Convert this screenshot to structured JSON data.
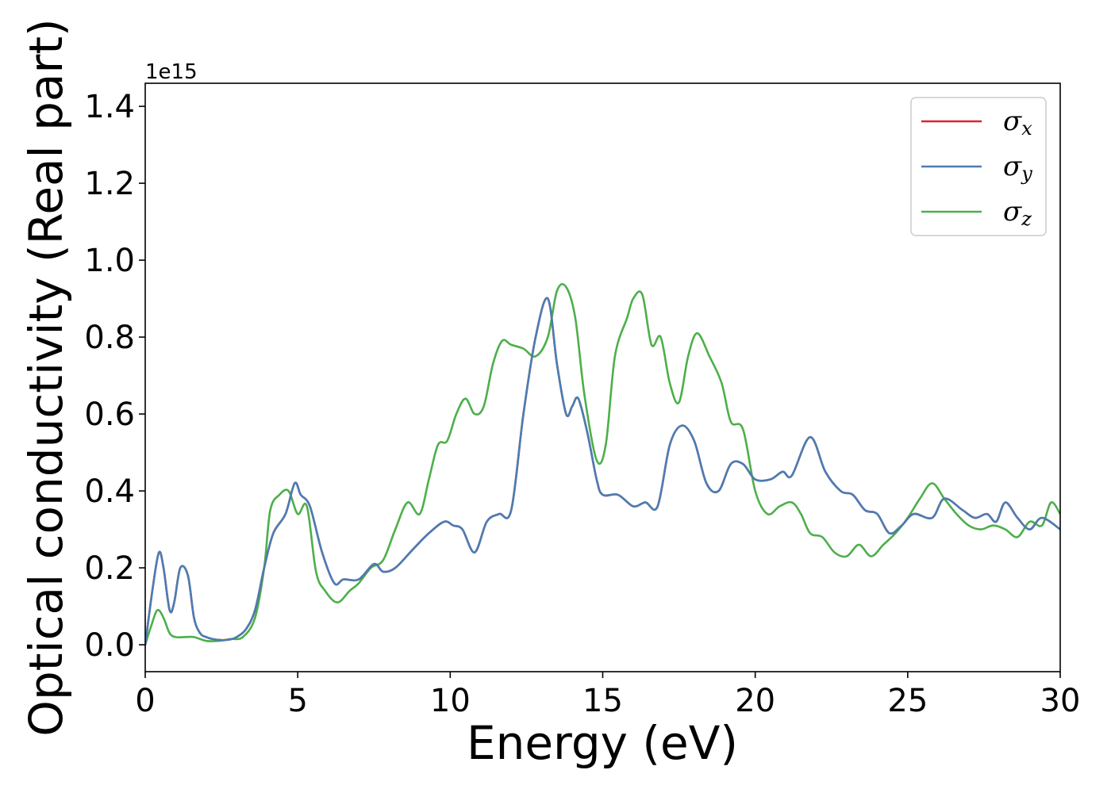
{
  "chart_data": {
    "type": "line",
    "title": "",
    "xlabel": "Energy (eV)",
    "ylabel": "Optical conductivity (Real part)",
    "y_offset_label": "1e15",
    "y_scale_factor": 1000000000000000.0,
    "xlim": [
      0,
      30
    ],
    "ylim": [
      -0.07,
      1.46
    ],
    "xticks": [
      0,
      5,
      10,
      15,
      20,
      25,
      30
    ],
    "yticks": [
      0.0,
      0.2,
      0.4,
      0.6,
      0.8,
      1.0,
      1.2,
      1.4
    ],
    "grid": false,
    "legend_position": "top-right",
    "series": [
      {
        "name": "σ",
        "subscript": "x",
        "color": "#d62728",
        "x": [
          0,
          0.25,
          0.45,
          0.6,
          0.8,
          0.95,
          1.15,
          1.4,
          1.6,
          1.8,
          2.0,
          2.2,
          2.5,
          2.8,
          3.0,
          3.3,
          3.6,
          3.9,
          4.2,
          4.6,
          4.9,
          5.1,
          5.4,
          5.8,
          6.2,
          6.5,
          7.0,
          7.5,
          7.8,
          8.2,
          8.8,
          9.3,
          9.8,
          10.1,
          10.4,
          10.8,
          11.2,
          11.6,
          12.0,
          12.4,
          12.8,
          13.2,
          13.5,
          13.8,
          14.0,
          14.2,
          14.5,
          14.8,
          15.0,
          15.5,
          16.0,
          16.4,
          16.8,
          17.2,
          17.6,
          18.0,
          18.4,
          18.8,
          19.2,
          19.6,
          20.0,
          20.5,
          20.9,
          21.2,
          21.8,
          22.3,
          22.8,
          23.2,
          23.6,
          24.0,
          24.4,
          24.8,
          25.2,
          25.8,
          26.2,
          26.8,
          27.2,
          27.6,
          27.9,
          28.2,
          28.6,
          29.0,
          29.4,
          30.0
        ],
        "values": [
          0.0,
          0.15,
          0.24,
          0.2,
          0.09,
          0.11,
          0.2,
          0.18,
          0.07,
          0.03,
          0.02,
          0.015,
          0.012,
          0.014,
          0.02,
          0.04,
          0.09,
          0.2,
          0.29,
          0.34,
          0.42,
          0.39,
          0.36,
          0.24,
          0.16,
          0.17,
          0.17,
          0.21,
          0.19,
          0.2,
          0.25,
          0.29,
          0.32,
          0.31,
          0.3,
          0.24,
          0.32,
          0.34,
          0.35,
          0.6,
          0.8,
          0.9,
          0.73,
          0.6,
          0.62,
          0.64,
          0.55,
          0.43,
          0.39,
          0.39,
          0.36,
          0.37,
          0.36,
          0.52,
          0.57,
          0.53,
          0.42,
          0.4,
          0.47,
          0.47,
          0.43,
          0.43,
          0.45,
          0.44,
          0.54,
          0.45,
          0.4,
          0.39,
          0.35,
          0.34,
          0.29,
          0.31,
          0.34,
          0.33,
          0.38,
          0.35,
          0.33,
          0.34,
          0.32,
          0.37,
          0.33,
          0.3,
          0.33,
          0.3
        ]
      },
      {
        "name": "σ",
        "subscript": "y",
        "color": "#4a7db3",
        "x": [
          0,
          0.25,
          0.45,
          0.6,
          0.8,
          0.95,
          1.15,
          1.4,
          1.6,
          1.8,
          2.0,
          2.2,
          2.5,
          2.8,
          3.0,
          3.3,
          3.6,
          3.9,
          4.2,
          4.6,
          4.9,
          5.1,
          5.4,
          5.8,
          6.2,
          6.5,
          7.0,
          7.5,
          7.8,
          8.2,
          8.8,
          9.3,
          9.8,
          10.1,
          10.4,
          10.8,
          11.2,
          11.6,
          12.0,
          12.4,
          12.8,
          13.2,
          13.5,
          13.8,
          14.0,
          14.2,
          14.5,
          14.8,
          15.0,
          15.5,
          16.0,
          16.4,
          16.8,
          17.2,
          17.6,
          18.0,
          18.4,
          18.8,
          19.2,
          19.6,
          20.0,
          20.5,
          20.9,
          21.2,
          21.8,
          22.3,
          22.8,
          23.2,
          23.6,
          24.0,
          24.4,
          24.8,
          25.2,
          25.8,
          26.2,
          26.8,
          27.2,
          27.6,
          27.9,
          28.2,
          28.6,
          29.0,
          29.4,
          30.0
        ],
        "values": [
          0.0,
          0.15,
          0.24,
          0.2,
          0.09,
          0.11,
          0.2,
          0.18,
          0.07,
          0.03,
          0.02,
          0.015,
          0.012,
          0.014,
          0.02,
          0.04,
          0.09,
          0.2,
          0.29,
          0.34,
          0.42,
          0.39,
          0.36,
          0.24,
          0.16,
          0.17,
          0.17,
          0.21,
          0.19,
          0.2,
          0.25,
          0.29,
          0.32,
          0.31,
          0.3,
          0.24,
          0.32,
          0.34,
          0.35,
          0.6,
          0.8,
          0.9,
          0.73,
          0.6,
          0.62,
          0.64,
          0.55,
          0.43,
          0.39,
          0.39,
          0.36,
          0.37,
          0.36,
          0.52,
          0.57,
          0.53,
          0.42,
          0.4,
          0.47,
          0.47,
          0.43,
          0.43,
          0.45,
          0.44,
          0.54,
          0.45,
          0.4,
          0.39,
          0.35,
          0.34,
          0.29,
          0.31,
          0.34,
          0.33,
          0.38,
          0.35,
          0.33,
          0.34,
          0.32,
          0.37,
          0.33,
          0.3,
          0.33,
          0.3
        ]
      },
      {
        "name": "σ",
        "subscript": "z",
        "color": "#4daf4a",
        "x": [
          0,
          0.2,
          0.4,
          0.6,
          0.8,
          1.0,
          1.3,
          1.6,
          2.0,
          2.4,
          2.8,
          3.2,
          3.6,
          3.9,
          4.1,
          4.4,
          4.7,
          5.0,
          5.3,
          5.6,
          5.9,
          6.3,
          6.7,
          7.0,
          7.4,
          7.8,
          8.2,
          8.6,
          9.0,
          9.3,
          9.6,
          9.9,
          10.2,
          10.5,
          10.8,
          11.1,
          11.4,
          11.7,
          12.0,
          12.4,
          12.8,
          13.2,
          13.5,
          13.8,
          14.1,
          14.4,
          14.8,
          15.1,
          15.4,
          15.8,
          16.0,
          16.3,
          16.6,
          16.9,
          17.2,
          17.5,
          17.8,
          18.1,
          18.5,
          18.9,
          19.2,
          19.6,
          20.0,
          20.4,
          20.8,
          21.2,
          21.5,
          21.8,
          22.2,
          22.6,
          23.0,
          23.4,
          23.8,
          24.2,
          24.6,
          25.0,
          25.4,
          25.8,
          26.2,
          26.6,
          27.0,
          27.4,
          27.8,
          28.2,
          28.6,
          29.0,
          29.4,
          29.7,
          30.0
        ],
        "values": [
          0.0,
          0.05,
          0.09,
          0.07,
          0.03,
          0.02,
          0.02,
          0.02,
          0.01,
          0.01,
          0.015,
          0.02,
          0.07,
          0.2,
          0.35,
          0.39,
          0.4,
          0.34,
          0.36,
          0.19,
          0.14,
          0.11,
          0.14,
          0.16,
          0.2,
          0.22,
          0.3,
          0.37,
          0.34,
          0.43,
          0.52,
          0.53,
          0.6,
          0.64,
          0.6,
          0.62,
          0.73,
          0.79,
          0.78,
          0.77,
          0.75,
          0.8,
          0.92,
          0.93,
          0.85,
          0.65,
          0.48,
          0.52,
          0.75,
          0.85,
          0.9,
          0.91,
          0.78,
          0.8,
          0.68,
          0.63,
          0.75,
          0.81,
          0.75,
          0.68,
          0.58,
          0.56,
          0.4,
          0.34,
          0.36,
          0.37,
          0.34,
          0.29,
          0.28,
          0.24,
          0.23,
          0.26,
          0.23,
          0.26,
          0.29,
          0.33,
          0.38,
          0.42,
          0.38,
          0.34,
          0.31,
          0.3,
          0.31,
          0.3,
          0.28,
          0.32,
          0.31,
          0.37,
          0.34
        ]
      }
    ]
  }
}
